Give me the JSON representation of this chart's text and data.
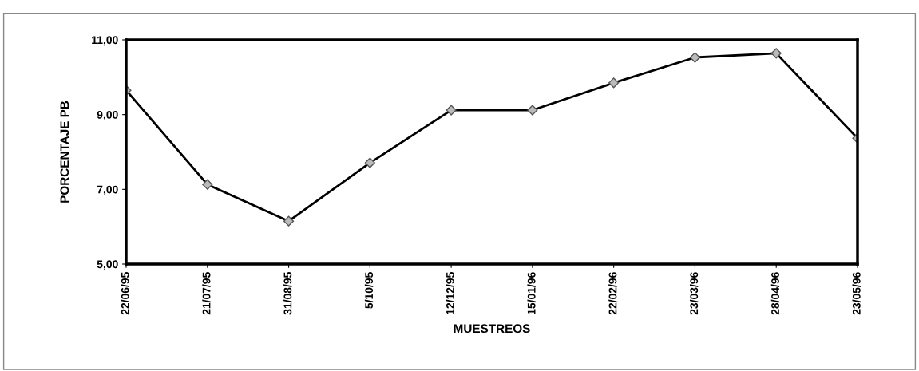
{
  "chart_data": {
    "type": "line",
    "xlabel": "MUESTREOS",
    "ylabel": "PORCENTAJE PB",
    "categories": [
      "22/06/95",
      "21/07/95",
      "31/08/95",
      "5/10/95",
      "12/12/95",
      "15/01/96",
      "22/02/96",
      "23/03/96",
      "28/04/96",
      "23/05/96"
    ],
    "series": [
      {
        "color": "#000000",
        "values": [
          9.65,
          7.13,
          6.15,
          7.71,
          9.12,
          9.12,
          9.85,
          10.53,
          10.64,
          8.37
        ]
      }
    ],
    "ylim": [
      5,
      11
    ],
    "yticks": [
      {
        "value": 5,
        "label": "5,00"
      },
      {
        "value": 7,
        "label": "7,00"
      },
      {
        "value": 9,
        "label": "9,00"
      },
      {
        "value": 11,
        "label": "11,00"
      }
    ],
    "grid": false,
    "legend": false,
    "marker": "diamond",
    "line_style": "solid"
  }
}
